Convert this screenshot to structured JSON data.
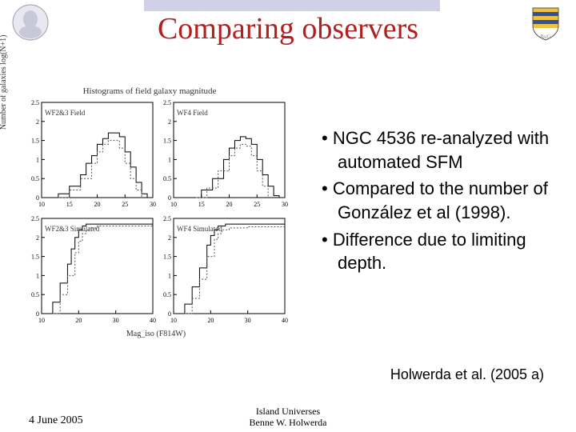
{
  "title": "Comparing observers",
  "bullets": [
    "NGC 4536 re-analyzed with automated SFM",
    "Compared to the number of González et al (1998).",
    "Difference due to limiting depth."
  ],
  "citation": "Holwerda et al. (2005 a)",
  "footer": {
    "date": "4 June 2005",
    "line1": "Island Universes",
    "line2": "Benne W. Holwerda"
  },
  "figure": {
    "title": "Histograms of field galaxy magnitude",
    "ylabel": "Number of galaxies log(N+1)",
    "xlabel": "Mag_iso (F814W)",
    "panel_labels": [
      "WF2&3 Field",
      "WF4 Field",
      "WF2&3 Simulated",
      "WF4 Simulated"
    ],
    "ylim": [
      0,
      2.5
    ],
    "yticks": [
      0,
      0.5,
      1.0,
      1.5,
      2.0,
      2.5
    ],
    "xlim": [
      10,
      30
    ],
    "xticks_top": [
      10,
      15,
      20,
      25,
      30
    ],
    "xticks_bottom": [
      10,
      20,
      30,
      40
    ],
    "line_color": "#000000",
    "dash_color": "#555555",
    "bg": "#ffffff",
    "panels": [
      {
        "solid": [
          [
            11,
            0
          ],
          [
            13,
            0.1
          ],
          [
            15,
            0.3
          ],
          [
            17,
            0.6
          ],
          [
            18,
            0.9
          ],
          [
            19,
            1.1
          ],
          [
            20,
            1.4
          ],
          [
            21,
            1.55
          ],
          [
            22,
            1.7
          ],
          [
            23,
            1.7
          ],
          [
            24,
            1.6
          ],
          [
            25,
            1.2
          ],
          [
            26,
            0.8
          ],
          [
            27,
            0.4
          ],
          [
            28,
            0.1
          ],
          [
            29,
            0
          ]
        ],
        "dashed": [
          [
            13,
            0
          ],
          [
            15,
            0.2
          ],
          [
            17,
            0.5
          ],
          [
            19,
            0.9
          ],
          [
            20,
            1.2
          ],
          [
            21,
            1.4
          ],
          [
            22,
            1.5
          ],
          [
            23,
            1.5
          ],
          [
            24,
            1.3
          ],
          [
            25,
            0.9
          ],
          [
            26,
            0.5
          ],
          [
            27,
            0.2
          ],
          [
            28,
            0
          ]
        ]
      },
      {
        "solid": [
          [
            12,
            0
          ],
          [
            15,
            0.2
          ],
          [
            17,
            0.5
          ],
          [
            19,
            1.0
          ],
          [
            20,
            1.3
          ],
          [
            21,
            1.5
          ],
          [
            22,
            1.6
          ],
          [
            23,
            1.55
          ],
          [
            24,
            1.4
          ],
          [
            25,
            1.0
          ],
          [
            26,
            0.6
          ],
          [
            27,
            0.3
          ],
          [
            28,
            0.05
          ],
          [
            29,
            0
          ]
        ],
        "dashed": [
          [
            14,
            0
          ],
          [
            16,
            0.25
          ],
          [
            18,
            0.7
          ],
          [
            20,
            1.1
          ],
          [
            21,
            1.3
          ],
          [
            22,
            1.4
          ],
          [
            23,
            1.35
          ],
          [
            24,
            1.1
          ],
          [
            25,
            0.7
          ],
          [
            26,
            0.3
          ],
          [
            27,
            0
          ]
        ]
      },
      {
        "solid": [
          [
            11,
            0
          ],
          [
            13,
            0.3
          ],
          [
            15,
            0.8
          ],
          [
            17,
            1.3
          ],
          [
            18,
            1.7
          ],
          [
            19,
            2.0
          ],
          [
            20,
            2.2
          ],
          [
            21,
            2.3
          ],
          [
            22,
            2.35
          ],
          [
            24,
            2.35
          ],
          [
            26,
            2.35
          ],
          [
            30,
            2.35
          ],
          [
            35,
            2.35
          ],
          [
            40,
            2.35
          ]
        ],
        "dashed": [
          [
            13,
            0
          ],
          [
            15,
            0.5
          ],
          [
            17,
            1.0
          ],
          [
            19,
            1.6
          ],
          [
            20,
            1.9
          ],
          [
            21,
            2.1
          ],
          [
            22,
            2.2
          ],
          [
            23,
            2.25
          ],
          [
            25,
            2.3
          ],
          [
            30,
            2.3
          ],
          [
            40,
            2.3
          ]
        ]
      },
      {
        "solid": [
          [
            11,
            0
          ],
          [
            13,
            0.25
          ],
          [
            15,
            0.7
          ],
          [
            17,
            1.2
          ],
          [
            19,
            1.8
          ],
          [
            20,
            2.05
          ],
          [
            21,
            2.2
          ],
          [
            22,
            2.3
          ],
          [
            24,
            2.35
          ],
          [
            28,
            2.35
          ],
          [
            35,
            2.35
          ],
          [
            40,
            2.35
          ]
        ],
        "dashed": [
          [
            13,
            0
          ],
          [
            15,
            0.4
          ],
          [
            17,
            0.9
          ],
          [
            19,
            1.5
          ],
          [
            21,
            1.95
          ],
          [
            22,
            2.1
          ],
          [
            23,
            2.2
          ],
          [
            25,
            2.25
          ],
          [
            30,
            2.28
          ],
          [
            40,
            2.28
          ]
        ]
      }
    ]
  },
  "logos": {
    "left_bg": "#e0e0e8",
    "right_stripes": [
      "#f0c040",
      "#3050a0"
    ]
  }
}
